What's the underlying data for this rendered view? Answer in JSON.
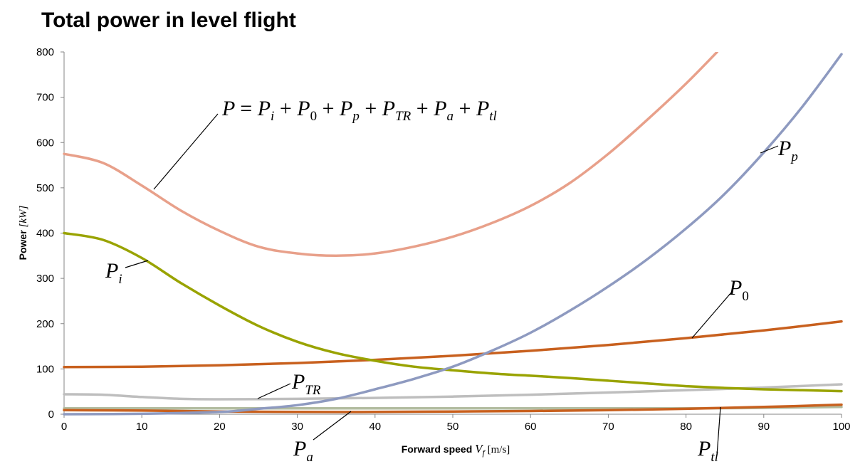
{
  "title": "Total power in level flight",
  "chart_data": {
    "type": "line",
    "title": "Total power in level flight",
    "xlabel_prefix": "Forward speed",
    "xlabel_var": "V",
    "xlabel_sub": "f",
    "xlabel_unit": "[m/s]",
    "ylabel_prefix": "Power",
    "ylabel_unit": "[kW]",
    "xlim": [
      0,
      100
    ],
    "ylim": [
      0,
      800
    ],
    "xticks": [
      "0",
      "10",
      "20",
      "30",
      "40",
      "50",
      "60",
      "70",
      "80",
      "90",
      "100"
    ],
    "yticks": [
      "0",
      "100",
      "200",
      "300",
      "400",
      "500",
      "600",
      "700",
      "800"
    ],
    "grid": false,
    "series": [
      {
        "name": "P",
        "color": "#e8a08a",
        "x": [
          0,
          5,
          10,
          15,
          20,
          25,
          30,
          35,
          40,
          45,
          50,
          55,
          60,
          65,
          70,
          75,
          80,
          84
        ],
        "y": [
          575,
          555,
          505,
          450,
          405,
          370,
          355,
          350,
          355,
          370,
          392,
          422,
          460,
          510,
          575,
          650,
          730,
          800
        ]
      },
      {
        "name": "P_p",
        "color": "#8e9ac0",
        "x": [
          0,
          10,
          20,
          25,
          30,
          35,
          40,
          45,
          50,
          55,
          60,
          65,
          70,
          75,
          80,
          85,
          90,
          95,
          100
        ],
        "y": [
          0,
          1,
          5,
          12,
          20,
          34,
          55,
          78,
          105,
          140,
          180,
          228,
          282,
          342,
          410,
          487,
          578,
          680,
          795
        ]
      },
      {
        "name": "P_i",
        "color": "#99a300",
        "x": [
          0,
          5,
          10,
          15,
          20,
          25,
          30,
          35,
          40,
          45,
          50,
          55,
          60,
          65,
          70,
          75,
          80,
          85,
          90,
          95,
          100
        ],
        "y": [
          400,
          385,
          345,
          290,
          240,
          195,
          160,
          135,
          118,
          105,
          97,
          90,
          85,
          80,
          74,
          68,
          62,
          58,
          55,
          53,
          51
        ]
      },
      {
        "name": "P_0",
        "color": "#c8601e",
        "x": [
          0,
          10,
          20,
          30,
          40,
          50,
          60,
          70,
          80,
          90,
          100
        ],
        "y": [
          104,
          105,
          108,
          113,
          120,
          129,
          140,
          153,
          168,
          185,
          205
        ]
      },
      {
        "name": "P_TR",
        "color": "#bebebe",
        "x": [
          0,
          5,
          10,
          15,
          20,
          30,
          40,
          50,
          60,
          70,
          80,
          90,
          100
        ],
        "y": [
          44,
          43,
          38,
          34,
          33,
          34,
          36,
          39,
          43,
          48,
          53,
          59,
          66
        ]
      },
      {
        "name": "P_a",
        "color": "#c8601e",
        "x": [
          0,
          10,
          20,
          30,
          40,
          50,
          60,
          70,
          80,
          90,
          100
        ],
        "y": [
          9,
          8,
          6,
          5,
          5,
          6,
          7,
          9,
          12,
          16,
          21
        ]
      },
      {
        "name": "P_tl",
        "color": "#b2bca0",
        "x": [
          0,
          20,
          40,
          60,
          80,
          90,
          100
        ],
        "y": [
          13,
          13,
          13,
          13,
          13,
          14,
          16
        ]
      }
    ],
    "annotations": {
      "P_total": {
        "lhs": "P",
        "eq": "=",
        "terms": [
          [
            "P",
            "i"
          ],
          [
            "P",
            "0"
          ],
          [
            "P",
            "p"
          ],
          [
            "P",
            "TR"
          ],
          [
            "P",
            "a"
          ],
          [
            "P",
            "tl"
          ]
        ],
        "plus": "+"
      },
      "P_p": {
        "main": "P",
        "sub": "p"
      },
      "P_i": {
        "main": "P",
        "sub": "i"
      },
      "P_0": {
        "main": "P",
        "sub": "0"
      },
      "P_TR": {
        "main": "P",
        "sub": "TR"
      },
      "P_a": {
        "main": "P",
        "sub": "a"
      },
      "P_tl": {
        "main": "P",
        "sub": "tl"
      }
    }
  }
}
